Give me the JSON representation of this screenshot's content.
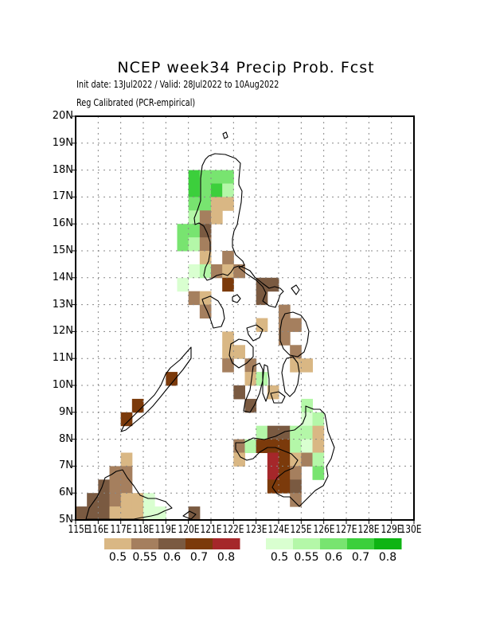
{
  "title": "NCEP week34 Precip Prob. Fcst",
  "subtitle_1": "Init date: 13Jul2022 / Valid: 28Jul2022 to 10Aug2022",
  "subtitle_2": "Reg Calibrated (PCR-empirical)",
  "lat_labels": [
    "20N",
    "19N",
    "18N",
    "17N",
    "16N",
    "15N",
    "14N",
    "13N",
    "12N",
    "11N",
    "10N",
    "9N",
    "8N",
    "7N",
    "6N",
    "5N"
  ],
  "lon_labels": [
    "115E",
    "116E",
    "117E",
    "118E",
    "119E",
    "120E",
    "121E",
    "122E",
    "123E",
    "124E",
    "125E",
    "126E",
    "127E",
    "128E",
    "129E",
    "130E"
  ],
  "grid": "dotted",
  "chart_data": {
    "type": "heatmap",
    "title": "NCEP week34 Precip Prob. Fcst",
    "xlim": [
      115,
      130
    ],
    "ylim": [
      5,
      20
    ],
    "cell_size_deg": 0.5,
    "below_normal_legend": {
      "labels": [
        "0.5",
        "0.55",
        "0.6",
        "0.7",
        "0.8"
      ],
      "colors": [
        "#d9b784",
        "#a57f5e",
        "#7a5a41",
        "#7b3a0b",
        "#a5272a"
      ]
    },
    "above_normal_legend": {
      "labels": [
        "0.5",
        "0.55",
        "0.6",
        "0.7",
        "0.8"
      ],
      "colors": [
        "#d9ffd0",
        "#b4f7a8",
        "#78e470",
        "#3ccf3c",
        "#0fb414"
      ]
    },
    "cells": [
      {
        "lon": 120.25,
        "lat": 17.75,
        "cat": "above",
        "level": 4
      },
      {
        "lon": 120.75,
        "lat": 17.75,
        "cat": "above",
        "level": 3
      },
      {
        "lon": 121.25,
        "lat": 17.75,
        "cat": "above",
        "level": 3
      },
      {
        "lon": 121.75,
        "lat": 17.75,
        "cat": "above",
        "level": 3
      },
      {
        "lon": 120.25,
        "lat": 17.25,
        "cat": "above",
        "level": 4
      },
      {
        "lon": 120.75,
        "lat": 17.25,
        "cat": "above",
        "level": 3
      },
      {
        "lon": 121.25,
        "lat": 17.25,
        "cat": "above",
        "level": 4
      },
      {
        "lon": 121.75,
        "lat": 17.25,
        "cat": "above",
        "level": 2
      },
      {
        "lon": 120.25,
        "lat": 16.75,
        "cat": "above",
        "level": 3
      },
      {
        "lon": 120.75,
        "lat": 16.75,
        "cat": "above",
        "level": 3
      },
      {
        "lon": 121.25,
        "lat": 16.75,
        "cat": "below",
        "level": 1
      },
      {
        "lon": 121.75,
        "lat": 16.75,
        "cat": "below",
        "level": 1
      },
      {
        "lon": 120.25,
        "lat": 16.25,
        "cat": "above",
        "level": 2
      },
      {
        "lon": 120.75,
        "lat": 16.25,
        "cat": "below",
        "level": 2
      },
      {
        "lon": 121.25,
        "lat": 16.25,
        "cat": "below",
        "level": 1
      },
      {
        "lon": 119.75,
        "lat": 15.75,
        "cat": "above",
        "level": 3
      },
      {
        "lon": 120.25,
        "lat": 15.75,
        "cat": "above",
        "level": 3
      },
      {
        "lon": 120.75,
        "lat": 15.75,
        "cat": "below",
        "level": 3
      },
      {
        "lon": 119.75,
        "lat": 15.25,
        "cat": "above",
        "level": 3
      },
      {
        "lon": 120.25,
        "lat": 15.25,
        "cat": "above",
        "level": 2
      },
      {
        "lon": 120.75,
        "lat": 15.25,
        "cat": "below",
        "level": 2
      },
      {
        "lon": 120.75,
        "lat": 14.75,
        "cat": "below",
        "level": 1
      },
      {
        "lon": 121.75,
        "lat": 14.75,
        "cat": "below",
        "level": 2
      },
      {
        "lon": 120.25,
        "lat": 14.25,
        "cat": "above",
        "level": 1
      },
      {
        "lon": 120.75,
        "lat": 14.25,
        "cat": "above",
        "level": 2
      },
      {
        "lon": 121.25,
        "lat": 14.25,
        "cat": "below",
        "level": 2
      },
      {
        "lon": 121.75,
        "lat": 14.25,
        "cat": "below",
        "level": 1
      },
      {
        "lon": 122.25,
        "lat": 14.25,
        "cat": "below",
        "level": 2
      },
      {
        "lon": 119.75,
        "lat": 13.75,
        "cat": "above",
        "level": 1
      },
      {
        "lon": 121.75,
        "lat": 13.75,
        "cat": "below",
        "level": 4
      },
      {
        "lon": 123.25,
        "lat": 13.75,
        "cat": "below",
        "level": 3
      },
      {
        "lon": 123.75,
        "lat": 13.75,
        "cat": "below",
        "level": 3
      },
      {
        "lon": 120.25,
        "lat": 13.25,
        "cat": "below",
        "level": 2
      },
      {
        "lon": 120.75,
        "lat": 13.25,
        "cat": "below",
        "level": 1
      },
      {
        "lon": 123.25,
        "lat": 13.25,
        "cat": "below",
        "level": 3
      },
      {
        "lon": 120.75,
        "lat": 12.75,
        "cat": "below",
        "level": 2
      },
      {
        "lon": 124.25,
        "lat": 12.75,
        "cat": "below",
        "level": 2
      },
      {
        "lon": 123.25,
        "lat": 12.25,
        "cat": "below",
        "level": 1
      },
      {
        "lon": 124.25,
        "lat": 12.25,
        "cat": "below",
        "level": 2
      },
      {
        "lon": 124.75,
        "lat": 12.25,
        "cat": "below",
        "level": 2
      },
      {
        "lon": 121.75,
        "lat": 11.75,
        "cat": "below",
        "level": 1
      },
      {
        "lon": 124.25,
        "lat": 11.75,
        "cat": "below",
        "level": 2
      },
      {
        "lon": 121.75,
        "lat": 11.25,
        "cat": "below",
        "level": 1
      },
      {
        "lon": 122.25,
        "lat": 11.25,
        "cat": "below",
        "level": 1
      },
      {
        "lon": 124.75,
        "lat": 11.25,
        "cat": "below",
        "level": 2
      },
      {
        "lon": 121.75,
        "lat": 10.75,
        "cat": "below",
        "level": 2
      },
      {
        "lon": 122.75,
        "lat": 10.75,
        "cat": "below",
        "level": 2
      },
      {
        "lon": 124.75,
        "lat": 10.75,
        "cat": "below",
        "level": 1
      },
      {
        "lon": 125.25,
        "lat": 10.75,
        "cat": "below",
        "level": 1
      },
      {
        "lon": 119.25,
        "lat": 10.25,
        "cat": "below",
        "level": 4
      },
      {
        "lon": 122.75,
        "lat": 10.25,
        "cat": "below",
        "level": 1
      },
      {
        "lon": 123.25,
        "lat": 10.25,
        "cat": "above",
        "level": 2
      },
      {
        "lon": 122.25,
        "lat": 9.75,
        "cat": "below",
        "level": 3
      },
      {
        "lon": 123.75,
        "lat": 9.75,
        "cat": "below",
        "level": 1
      },
      {
        "lon": 117.75,
        "lat": 9.25,
        "cat": "below",
        "level": 4
      },
      {
        "lon": 122.75,
        "lat": 9.25,
        "cat": "below",
        "level": 3
      },
      {
        "lon": 125.25,
        "lat": 9.25,
        "cat": "above",
        "level": 2
      },
      {
        "lon": 117.25,
        "lat": 8.75,
        "cat": "below",
        "level": 4
      },
      {
        "lon": 125.25,
        "lat": 8.75,
        "cat": "above",
        "level": 1
      },
      {
        "lon": 125.75,
        "lat": 8.75,
        "cat": "above",
        "level": 2
      },
      {
        "lon": 123.25,
        "lat": 8.25,
        "cat": "above",
        "level": 2
      },
      {
        "lon": 123.75,
        "lat": 8.25,
        "cat": "below",
        "level": 3
      },
      {
        "lon": 124.25,
        "lat": 8.25,
        "cat": "below",
        "level": 3
      },
      {
        "lon": 124.75,
        "lat": 8.25,
        "cat": "above",
        "level": 2
      },
      {
        "lon": 125.25,
        "lat": 8.25,
        "cat": "above",
        "level": 2
      },
      {
        "lon": 125.75,
        "lat": 8.25,
        "cat": "below",
        "level": 1
      },
      {
        "lon": 122.25,
        "lat": 7.75,
        "cat": "below",
        "level": 2
      },
      {
        "lon": 122.75,
        "lat": 7.75,
        "cat": "above",
        "level": 2
      },
      {
        "lon": 123.25,
        "lat": 7.75,
        "cat": "below",
        "level": 4
      },
      {
        "lon": 123.75,
        "lat": 7.75,
        "cat": "below",
        "level": 4
      },
      {
        "lon": 124.25,
        "lat": 7.75,
        "cat": "below",
        "level": 4
      },
      {
        "lon": 124.75,
        "lat": 7.75,
        "cat": "above",
        "level": 2
      },
      {
        "lon": 125.25,
        "lat": 7.75,
        "cat": "above",
        "level": 1
      },
      {
        "lon": 125.75,
        "lat": 7.75,
        "cat": "below",
        "level": 1
      },
      {
        "lon": 122.25,
        "lat": 7.25,
        "cat": "below",
        "level": 1
      },
      {
        "lon": 123.75,
        "lat": 7.25,
        "cat": "below",
        "level": 5
      },
      {
        "lon": 124.25,
        "lat": 7.25,
        "cat": "below",
        "level": 4
      },
      {
        "lon": 124.75,
        "lat": 7.25,
        "cat": "below",
        "level": 1
      },
      {
        "lon": 125.25,
        "lat": 7.25,
        "cat": "below",
        "level": 2
      },
      {
        "lon": 125.75,
        "lat": 7.25,
        "cat": "above",
        "level": 2
      },
      {
        "lon": 123.75,
        "lat": 6.75,
        "cat": "below",
        "level": 5
      },
      {
        "lon": 124.25,
        "lat": 6.75,
        "cat": "below",
        "level": 4
      },
      {
        "lon": 124.75,
        "lat": 6.75,
        "cat": "below",
        "level": 2
      },
      {
        "lon": 125.75,
        "lat": 6.75,
        "cat": "above",
        "level": 3
      },
      {
        "lon": 123.75,
        "lat": 6.25,
        "cat": "below",
        "level": 4
      },
      {
        "lon": 124.25,
        "lat": 6.25,
        "cat": "below",
        "level": 4
      },
      {
        "lon": 124.75,
        "lat": 6.25,
        "cat": "below",
        "level": 3
      },
      {
        "lon": 124.75,
        "lat": 5.75,
        "cat": "below",
        "level": 2
      },
      {
        "lon": 117.25,
        "lat": 7.25,
        "cat": "below",
        "level": 1
      },
      {
        "lon": 116.75,
        "lat": 6.75,
        "cat": "below",
        "level": 2
      },
      {
        "lon": 117.25,
        "lat": 6.75,
        "cat": "below",
        "level": 2
      },
      {
        "lon": 116.25,
        "lat": 6.25,
        "cat": "below",
        "level": 3
      },
      {
        "lon": 116.75,
        "lat": 6.25,
        "cat": "below",
        "level": 2
      },
      {
        "lon": 117.25,
        "lat": 6.25,
        "cat": "below",
        "level": 2
      },
      {
        "lon": 115.75,
        "lat": 5.75,
        "cat": "below",
        "level": 3
      },
      {
        "lon": 116.25,
        "lat": 5.75,
        "cat": "below",
        "level": 3
      },
      {
        "lon": 116.75,
        "lat": 5.75,
        "cat": "below",
        "level": 2
      },
      {
        "lon": 117.25,
        "lat": 5.75,
        "cat": "below",
        "level": 1
      },
      {
        "lon": 117.75,
        "lat": 5.75,
        "cat": "below",
        "level": 1
      },
      {
        "lon": 118.25,
        "lat": 5.75,
        "cat": "above",
        "level": 1
      },
      {
        "lon": 115.25,
        "lat": 5.25,
        "cat": "below",
        "level": 3
      },
      {
        "lon": 115.75,
        "lat": 5.25,
        "cat": "below",
        "level": 3
      },
      {
        "lon": 116.25,
        "lat": 5.25,
        "cat": "below",
        "level": 3
      },
      {
        "lon": 116.75,
        "lat": 5.25,
        "cat": "below",
        "level": 1
      },
      {
        "lon": 117.25,
        "lat": 5.25,
        "cat": "below",
        "level": 1
      },
      {
        "lon": 117.75,
        "lat": 5.25,
        "cat": "below",
        "level": 1
      },
      {
        "lon": 118.25,
        "lat": 5.25,
        "cat": "above",
        "level": 1
      },
      {
        "lon": 118.75,
        "lat": 5.25,
        "cat": "above",
        "level": 1
      },
      {
        "lon": 120.25,
        "lat": 5.25,
        "cat": "below",
        "level": 3
      }
    ]
  }
}
